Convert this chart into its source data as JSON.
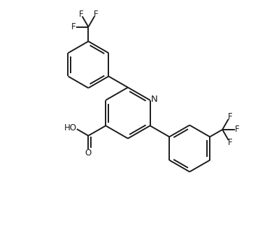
{
  "bg_color": "#ffffff",
  "line_color": "#1a1a1a",
  "line_width": 1.4,
  "font_size": 8.5,
  "figsize": [
    3.69,
    3.4
  ],
  "dpi": 100,
  "xlim": [
    -1.0,
    9.5
  ],
  "ylim": [
    -1.0,
    9.5
  ]
}
